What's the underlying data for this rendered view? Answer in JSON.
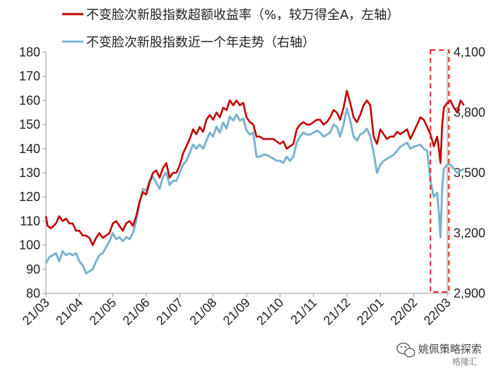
{
  "legend": {
    "excess": "不变脸次新股指数超额收益率（%，较万得全A，左轴）",
    "index": "不变脸次新股指数近一个年走势（右轴）"
  },
  "watermark": {
    "text": "姚佩策略探索",
    "sub": "格隆汇",
    "icon": "wechat-icon"
  },
  "colors": {
    "excess": "#c00000",
    "index": "#7db2cf",
    "highlight": "#e02020",
    "axis": "#999999"
  },
  "chart_data": {
    "type": "line",
    "x_tick_labels": [
      "21/03",
      "21/04",
      "21/05",
      "21/06",
      "21/07",
      "21/08",
      "21/09",
      "21/10",
      "21/11",
      "21/12",
      "22/01",
      "22/02",
      "22/03"
    ],
    "ylim_left": [
      80,
      180
    ],
    "yticks_left": [
      "80",
      "90",
      "100",
      "110",
      "120",
      "130",
      "140",
      "150",
      "160",
      "170",
      "180"
    ],
    "ylim_right": [
      2900,
      4100
    ],
    "yticks_right": [
      "2,900",
      "3,200",
      "3,500",
      "3,800",
      "4,100"
    ],
    "highlight": {
      "x_start": 11.5,
      "x_end": 12.05,
      "style": "dashed-box"
    },
    "series": [
      {
        "name": "不变脸次新股指数超额收益率（%，较万得全A，左轴）",
        "axis": "left",
        "points": [
          [
            0.0,
            112
          ],
          [
            0.05,
            108
          ],
          [
            0.15,
            107
          ],
          [
            0.3,
            109
          ],
          [
            0.4,
            112
          ],
          [
            0.5,
            110
          ],
          [
            0.6,
            111
          ],
          [
            0.7,
            109
          ],
          [
            0.8,
            109
          ],
          [
            0.9,
            106
          ],
          [
            1.0,
            106
          ],
          [
            1.1,
            104
          ],
          [
            1.2,
            104
          ],
          [
            1.3,
            103
          ],
          [
            1.4,
            100
          ],
          [
            1.5,
            103
          ],
          [
            1.6,
            105
          ],
          [
            1.7,
            103
          ],
          [
            1.8,
            104
          ],
          [
            1.9,
            105
          ],
          [
            2.0,
            109
          ],
          [
            2.1,
            110
          ],
          [
            2.2,
            108
          ],
          [
            2.3,
            106
          ],
          [
            2.4,
            109
          ],
          [
            2.5,
            110
          ],
          [
            2.6,
            108
          ],
          [
            2.7,
            112
          ],
          [
            2.8,
            118
          ],
          [
            2.9,
            122
          ],
          [
            3.0,
            121
          ],
          [
            3.1,
            126
          ],
          [
            3.2,
            130
          ],
          [
            3.3,
            131
          ],
          [
            3.4,
            128
          ],
          [
            3.5,
            132
          ],
          [
            3.6,
            134
          ],
          [
            3.7,
            128
          ],
          [
            3.8,
            130
          ],
          [
            3.9,
            130
          ],
          [
            4.0,
            133
          ],
          [
            4.1,
            138
          ],
          [
            4.2,
            141
          ],
          [
            4.3,
            144
          ],
          [
            4.4,
            148
          ],
          [
            4.5,
            146
          ],
          [
            4.6,
            149
          ],
          [
            4.7,
            147
          ],
          [
            4.8,
            152
          ],
          [
            4.9,
            154
          ],
          [
            5.0,
            152
          ],
          [
            5.1,
            155
          ],
          [
            5.2,
            153
          ],
          [
            5.3,
            157
          ],
          [
            5.4,
            156
          ],
          [
            5.5,
            160
          ],
          [
            5.6,
            158
          ],
          [
            5.7,
            160
          ],
          [
            5.8,
            158
          ],
          [
            5.9,
            159
          ],
          [
            6.0,
            153
          ],
          [
            6.1,
            151
          ],
          [
            6.2,
            150
          ],
          [
            6.3,
            145
          ],
          [
            6.4,
            145
          ],
          [
            6.5,
            144
          ],
          [
            6.6,
            144
          ],
          [
            6.7,
            144
          ],
          [
            6.8,
            144
          ],
          [
            6.9,
            143
          ],
          [
            7.0,
            142
          ],
          [
            7.1,
            143
          ],
          [
            7.2,
            140
          ],
          [
            7.3,
            141
          ],
          [
            7.4,
            142
          ],
          [
            7.5,
            148
          ],
          [
            7.6,
            150
          ],
          [
            7.7,
            151
          ],
          [
            7.8,
            150
          ],
          [
            7.9,
            150
          ],
          [
            8.0,
            151
          ],
          [
            8.1,
            152
          ],
          [
            8.2,
            152
          ],
          [
            8.3,
            150
          ],
          [
            8.4,
            151
          ],
          [
            8.5,
            153
          ],
          [
            8.6,
            156
          ],
          [
            8.7,
            155
          ],
          [
            8.8,
            152
          ],
          [
            8.9,
            157
          ],
          [
            9.0,
            164
          ],
          [
            9.1,
            159
          ],
          [
            9.2,
            153
          ],
          [
            9.3,
            151
          ],
          [
            9.4,
            154
          ],
          [
            9.5,
            158
          ],
          [
            9.6,
            160
          ],
          [
            9.7,
            158
          ],
          [
            9.8,
            145
          ],
          [
            9.9,
            142
          ],
          [
            10.0,
            148
          ],
          [
            10.1,
            146
          ],
          [
            10.2,
            144
          ],
          [
            10.3,
            145
          ],
          [
            10.4,
            145
          ],
          [
            10.5,
            147
          ],
          [
            10.6,
            146
          ],
          [
            10.7,
            147
          ],
          [
            10.8,
            148
          ],
          [
            10.9,
            144
          ],
          [
            11.0,
            147
          ],
          [
            11.2,
            153
          ],
          [
            11.3,
            152
          ],
          [
            11.4,
            149
          ],
          [
            11.5,
            146
          ],
          [
            11.6,
            141
          ],
          [
            11.7,
            145
          ],
          [
            11.75,
            140
          ],
          [
            11.8,
            134
          ],
          [
            11.85,
            150
          ],
          [
            11.9,
            157
          ],
          [
            12.0,
            159
          ],
          [
            12.1,
            160
          ],
          [
            12.2,
            157
          ],
          [
            12.3,
            155
          ],
          [
            12.4,
            160
          ],
          [
            12.5,
            158
          ]
        ]
      },
      {
        "name": "不变脸次新股指数近一个年走势（右轴）",
        "axis": "right",
        "points": [
          [
            0.0,
            3050
          ],
          [
            0.1,
            3080
          ],
          [
            0.2,
            3090
          ],
          [
            0.3,
            3100
          ],
          [
            0.4,
            3060
          ],
          [
            0.5,
            3110
          ],
          [
            0.6,
            3090
          ],
          [
            0.7,
            3100
          ],
          [
            0.8,
            3090
          ],
          [
            0.9,
            3100
          ],
          [
            1.0,
            3060
          ],
          [
            1.1,
            3040
          ],
          [
            1.2,
            3000
          ],
          [
            1.3,
            3010
          ],
          [
            1.4,
            3020
          ],
          [
            1.5,
            3060
          ],
          [
            1.6,
            3090
          ],
          [
            1.7,
            3100
          ],
          [
            1.8,
            3130
          ],
          [
            1.9,
            3160
          ],
          [
            2.0,
            3200
          ],
          [
            2.1,
            3170
          ],
          [
            2.2,
            3180
          ],
          [
            2.3,
            3160
          ],
          [
            2.4,
            3180
          ],
          [
            2.5,
            3170
          ],
          [
            2.6,
            3200
          ],
          [
            2.7,
            3260
          ],
          [
            2.8,
            3350
          ],
          [
            2.9,
            3420
          ],
          [
            3.0,
            3410
          ],
          [
            3.1,
            3460
          ],
          [
            3.2,
            3480
          ],
          [
            3.3,
            3450
          ],
          [
            3.4,
            3420
          ],
          [
            3.5,
            3480
          ],
          [
            3.6,
            3500
          ],
          [
            3.7,
            3440
          ],
          [
            3.8,
            3460
          ],
          [
            3.9,
            3460
          ],
          [
            4.0,
            3500
          ],
          [
            4.1,
            3540
          ],
          [
            4.2,
            3560
          ],
          [
            4.3,
            3600
          ],
          [
            4.4,
            3640
          ],
          [
            4.5,
            3620
          ],
          [
            4.6,
            3640
          ],
          [
            4.7,
            3620
          ],
          [
            4.8,
            3660
          ],
          [
            4.9,
            3700
          ],
          [
            5.0,
            3680
          ],
          [
            5.1,
            3730
          ],
          [
            5.2,
            3700
          ],
          [
            5.3,
            3750
          ],
          [
            5.4,
            3720
          ],
          [
            5.5,
            3780
          ],
          [
            5.6,
            3760
          ],
          [
            5.7,
            3790
          ],
          [
            5.8,
            3760
          ],
          [
            5.9,
            3770
          ],
          [
            6.0,
            3710
          ],
          [
            6.1,
            3690
          ],
          [
            6.2,
            3700
          ],
          [
            6.3,
            3580
          ],
          [
            6.4,
            3580
          ],
          [
            6.5,
            3590
          ],
          [
            6.6,
            3590
          ],
          [
            6.7,
            3580
          ],
          [
            6.8,
            3570
          ],
          [
            6.9,
            3560
          ],
          [
            7.0,
            3560
          ],
          [
            7.1,
            3550
          ],
          [
            7.2,
            3580
          ],
          [
            7.3,
            3560
          ],
          [
            7.4,
            3580
          ],
          [
            7.5,
            3650
          ],
          [
            7.6,
            3680
          ],
          [
            7.7,
            3700
          ],
          [
            7.8,
            3690
          ],
          [
            7.9,
            3690
          ],
          [
            8.0,
            3700
          ],
          [
            8.1,
            3710
          ],
          [
            8.2,
            3700
          ],
          [
            8.3,
            3680
          ],
          [
            8.4,
            3690
          ],
          [
            8.5,
            3700
          ],
          [
            8.6,
            3740
          ],
          [
            8.7,
            3730
          ],
          [
            8.8,
            3680
          ],
          [
            8.9,
            3740
          ],
          [
            9.0,
            3820
          ],
          [
            9.1,
            3760
          ],
          [
            9.2,
            3680
          ],
          [
            9.3,
            3660
          ],
          [
            9.4,
            3690
          ],
          [
            9.5,
            3700
          ],
          [
            9.6,
            3720
          ],
          [
            9.7,
            3680
          ],
          [
            9.8,
            3600
          ],
          [
            9.9,
            3500
          ],
          [
            10.0,
            3540
          ],
          [
            10.1,
            3560
          ],
          [
            10.2,
            3570
          ],
          [
            10.3,
            3580
          ],
          [
            10.4,
            3590
          ],
          [
            10.5,
            3610
          ],
          [
            10.6,
            3630
          ],
          [
            10.7,
            3640
          ],
          [
            10.8,
            3650
          ],
          [
            10.9,
            3620
          ],
          [
            11.0,
            3630
          ],
          [
            11.2,
            3640
          ],
          [
            11.3,
            3620
          ],
          [
            11.4,
            3610
          ],
          [
            11.5,
            3460
          ],
          [
            11.6,
            3380
          ],
          [
            11.7,
            3400
          ],
          [
            11.75,
            3300
          ],
          [
            11.8,
            3180
          ],
          [
            11.85,
            3420
          ],
          [
            11.9,
            3520
          ],
          [
            12.0,
            3540
          ],
          [
            12.1,
            3540
          ],
          [
            12.2,
            3520
          ],
          [
            12.3,
            3500
          ],
          [
            12.4,
            3510
          ],
          [
            12.5,
            3520
          ]
        ]
      }
    ]
  }
}
